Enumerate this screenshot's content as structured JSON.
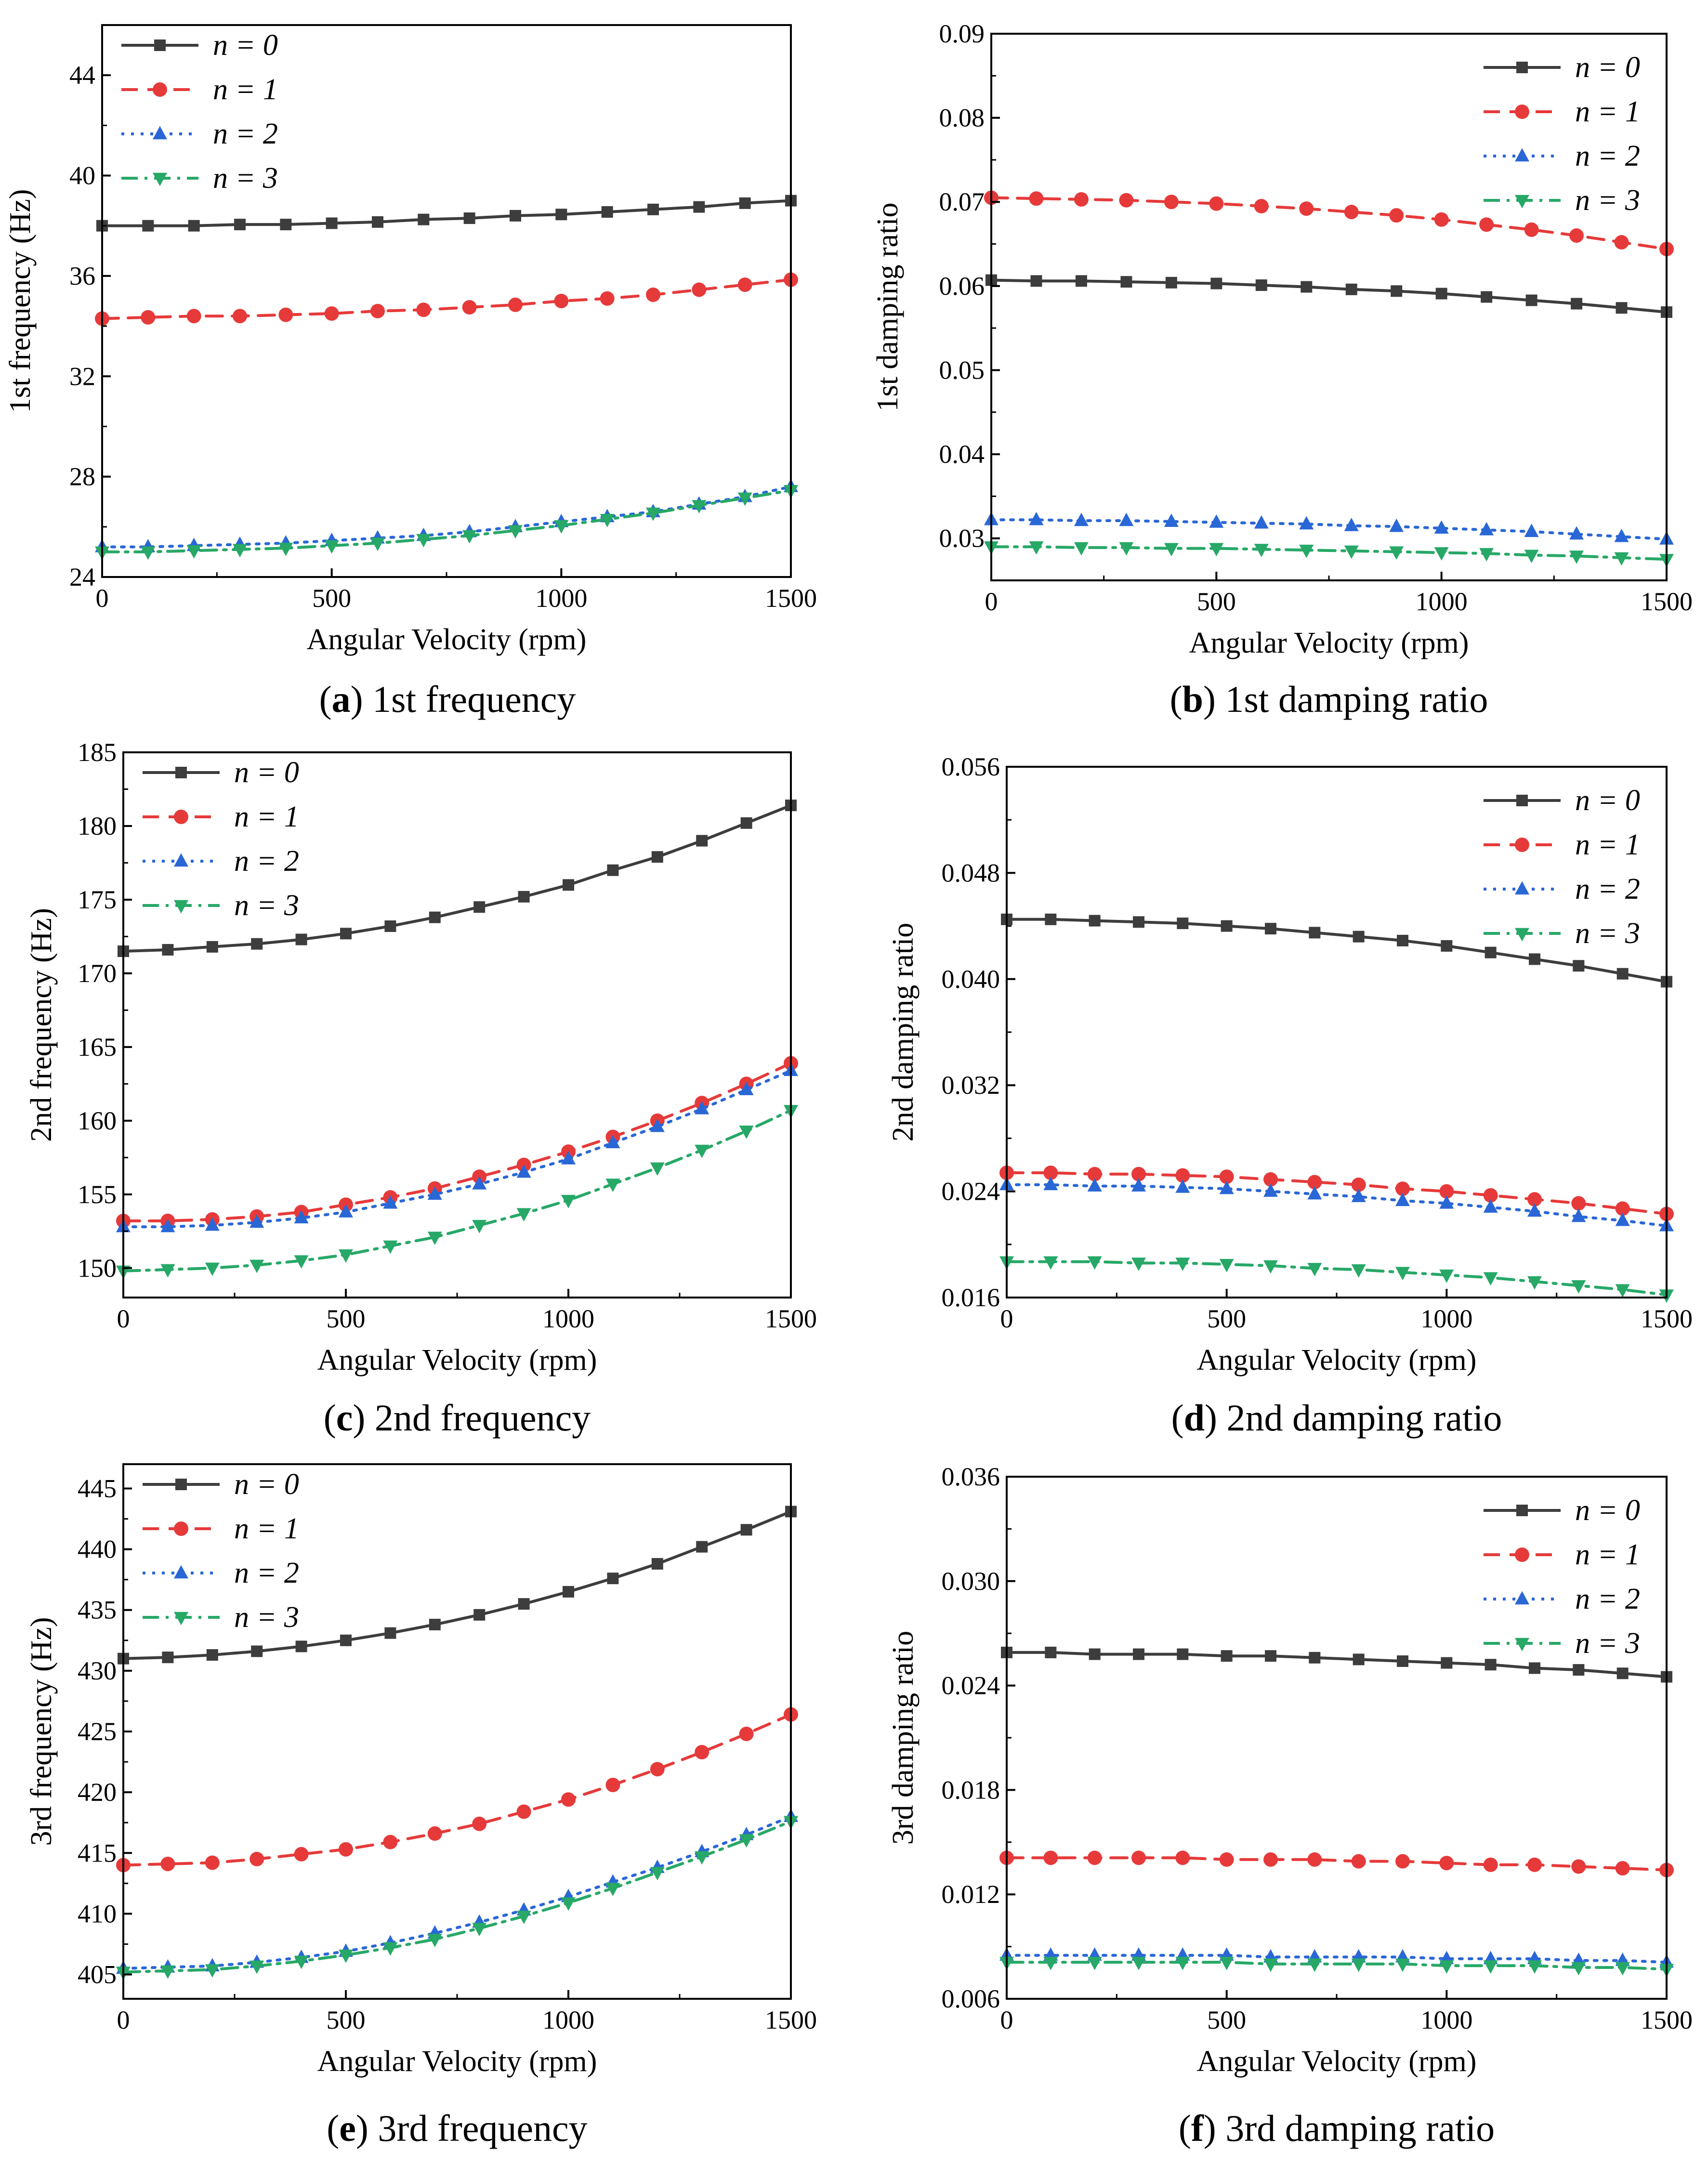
{
  "chart_data": [
    {
      "type": "line",
      "caption_letter": "a",
      "caption_text": "1st frequency",
      "xlabel": "Angular Velocity (rpm)",
      "ylabel": "1st frequency (Hz)",
      "xlim": [
        0,
        1500
      ],
      "ylim": [
        24,
        46
      ],
      "xticks": [
        0,
        500,
        1000,
        1500
      ],
      "yticks": [
        24,
        28,
        32,
        36,
        40,
        44
      ],
      "ytick_labels": [
        "24",
        "28",
        "32",
        "36",
        "40",
        "44"
      ],
      "legend_position": "top-left",
      "x": [
        0,
        100,
        200,
        300,
        400,
        500,
        600,
        700,
        800,
        900,
        1000,
        1100,
        1200,
        1300,
        1400,
        1500
      ],
      "series": [
        {
          "name": "n = 0",
          "values": [
            38.0,
            38.0,
            38.0,
            38.05,
            38.05,
            38.1,
            38.15,
            38.25,
            38.3,
            38.4,
            38.45,
            38.55,
            38.65,
            38.75,
            38.9,
            39.0
          ]
        },
        {
          "name": "n = 1",
          "values": [
            34.3,
            34.35,
            34.4,
            34.4,
            34.45,
            34.5,
            34.6,
            34.65,
            34.75,
            34.85,
            35.0,
            35.1,
            35.25,
            35.45,
            35.65,
            35.85
          ]
        },
        {
          "name": "n = 2",
          "values": [
            25.2,
            25.2,
            25.25,
            25.3,
            25.35,
            25.45,
            25.55,
            25.65,
            25.8,
            26.0,
            26.2,
            26.4,
            26.6,
            26.9,
            27.2,
            27.6
          ]
        },
        {
          "name": "n = 3",
          "values": [
            25.0,
            25.0,
            25.05,
            25.1,
            25.15,
            25.25,
            25.35,
            25.5,
            25.65,
            25.85,
            26.05,
            26.3,
            26.55,
            26.85,
            27.15,
            27.45
          ]
        }
      ]
    },
    {
      "type": "line",
      "caption_letter": "b",
      "caption_text": "1st damping ratio",
      "xlabel": "Angular Velocity (rpm)",
      "ylabel": "1st damping ratio",
      "xlim": [
        0,
        1500
      ],
      "ylim": [
        0.025,
        0.09
      ],
      "xticks": [
        0,
        500,
        1000,
        1500
      ],
      "yticks": [
        0.03,
        0.04,
        0.05,
        0.06,
        0.07,
        0.08,
        0.09
      ],
      "ytick_labels": [
        "0.03",
        "0.04",
        "0.05",
        "0.06",
        "0.07",
        "0.08",
        "0.09"
      ],
      "legend_position": "top-right",
      "x": [
        0,
        100,
        200,
        300,
        400,
        500,
        600,
        700,
        800,
        900,
        1000,
        1100,
        1200,
        1300,
        1400,
        1500
      ],
      "series": [
        {
          "name": "n = 0",
          "values": [
            0.0607,
            0.0606,
            0.0606,
            0.0605,
            0.0604,
            0.0603,
            0.0601,
            0.0599,
            0.0596,
            0.0594,
            0.0591,
            0.0587,
            0.0583,
            0.0579,
            0.0574,
            0.0569
          ]
        },
        {
          "name": "n = 1",
          "values": [
            0.0705,
            0.0704,
            0.0703,
            0.0702,
            0.07,
            0.0698,
            0.0695,
            0.0692,
            0.0688,
            0.0684,
            0.0679,
            0.0673,
            0.0667,
            0.066,
            0.0652,
            0.0644
          ]
        },
        {
          "name": "n = 2",
          "values": [
            0.0322,
            0.0322,
            0.0321,
            0.0321,
            0.032,
            0.0319,
            0.0318,
            0.0317,
            0.0315,
            0.0314,
            0.0312,
            0.031,
            0.0308,
            0.0305,
            0.0302,
            0.0299
          ]
        },
        {
          "name": "n = 3",
          "values": [
            0.029,
            0.029,
            0.0289,
            0.0289,
            0.0288,
            0.0288,
            0.0287,
            0.0286,
            0.0285,
            0.0284,
            0.0283,
            0.0282,
            0.028,
            0.0279,
            0.0277,
            0.0275
          ]
        }
      ]
    },
    {
      "type": "line",
      "caption_letter": "c",
      "caption_text": "2nd frequency",
      "xlabel": "Angular Velocity (rpm)",
      "ylabel": "2nd frequency (Hz)",
      "xlim": [
        0,
        1500
      ],
      "ylim": [
        148,
        185
      ],
      "xticks": [
        0,
        500,
        1000,
        1500
      ],
      "yticks": [
        150,
        155,
        160,
        165,
        170,
        175,
        180,
        185
      ],
      "ytick_labels": [
        "150",
        "155",
        "160",
        "165",
        "170",
        "175",
        "180",
        "185"
      ],
      "legend_position": "top-left",
      "x": [
        0,
        100,
        200,
        300,
        400,
        500,
        600,
        700,
        800,
        900,
        1000,
        1100,
        1200,
        1300,
        1400,
        1500
      ],
      "series": [
        {
          "name": "n = 0",
          "values": [
            171.5,
            171.6,
            171.8,
            172.0,
            172.3,
            172.7,
            173.2,
            173.8,
            174.5,
            175.2,
            176.0,
            177.0,
            177.9,
            179.0,
            180.2,
            181.4
          ]
        },
        {
          "name": "n = 1",
          "values": [
            153.2,
            153.2,
            153.3,
            153.5,
            153.8,
            154.3,
            154.8,
            155.4,
            156.2,
            157.0,
            157.9,
            158.9,
            160.0,
            161.2,
            162.5,
            163.9
          ]
        },
        {
          "name": "n = 2",
          "values": [
            152.8,
            152.8,
            152.9,
            153.1,
            153.4,
            153.8,
            154.4,
            155.0,
            155.7,
            156.5,
            157.4,
            158.5,
            159.6,
            160.8,
            162.1,
            163.4
          ]
        },
        {
          "name": "n = 3",
          "values": [
            149.8,
            149.9,
            150.0,
            150.2,
            150.5,
            150.9,
            151.5,
            152.1,
            152.9,
            153.7,
            154.6,
            155.7,
            156.8,
            158.0,
            159.3,
            160.7
          ]
        }
      ]
    },
    {
      "type": "line",
      "caption_letter": "d",
      "caption_text": "2nd damping ratio",
      "xlabel": "Angular Velocity (rpm)",
      "ylabel": "2nd damping ratio",
      "xlim": [
        0,
        1500
      ],
      "ylim": [
        0.016,
        0.056
      ],
      "xticks": [
        0,
        500,
        1000,
        1500
      ],
      "yticks": [
        0.016,
        0.024,
        0.032,
        0.04,
        0.048,
        0.056
      ],
      "ytick_labels": [
        "0.016",
        "0.024",
        "0.032",
        "0.040",
        "0.048",
        "0.056"
      ],
      "legend_position": "top-right",
      "x": [
        0,
        100,
        200,
        300,
        400,
        500,
        600,
        700,
        800,
        900,
        1000,
        1100,
        1200,
        1300,
        1400,
        1500
      ],
      "series": [
        {
          "name": "n = 0",
          "values": [
            0.0445,
            0.0445,
            0.0444,
            0.0443,
            0.0442,
            0.044,
            0.0438,
            0.0435,
            0.0432,
            0.0429,
            0.0425,
            0.042,
            0.0415,
            0.041,
            0.0404,
            0.0398
          ]
        },
        {
          "name": "n = 1",
          "values": [
            0.0254,
            0.0254,
            0.0253,
            0.0253,
            0.0252,
            0.0251,
            0.0249,
            0.0247,
            0.0245,
            0.0242,
            0.024,
            0.0237,
            0.0234,
            0.0231,
            0.0227,
            0.0223
          ]
        },
        {
          "name": "n = 2",
          "values": [
            0.0245,
            0.0245,
            0.0244,
            0.0244,
            0.0243,
            0.0242,
            0.024,
            0.0238,
            0.0236,
            0.0233,
            0.0231,
            0.0228,
            0.0225,
            0.0221,
            0.0218,
            0.0214
          ]
        },
        {
          "name": "n = 3",
          "values": [
            0.0187,
            0.0187,
            0.0187,
            0.0186,
            0.0186,
            0.0185,
            0.0184,
            0.0182,
            0.0181,
            0.0179,
            0.0177,
            0.0175,
            0.0172,
            0.0169,
            0.0166,
            0.0162
          ]
        }
      ]
    },
    {
      "type": "line",
      "caption_letter": "e",
      "caption_text": "3rd frequency",
      "xlabel": "Angular Velocity (rpm)",
      "ylabel": "3rd frequency (Hz)",
      "xlim": [
        0,
        1500
      ],
      "ylim": [
        403,
        447
      ],
      "xticks": [
        0,
        500,
        1000,
        1500
      ],
      "yticks": [
        405,
        410,
        415,
        420,
        425,
        430,
        435,
        440,
        445
      ],
      "ytick_labels": [
        "405",
        "410",
        "415",
        "420",
        "425",
        "430",
        "435",
        "440",
        "445"
      ],
      "legend_position": "top-left",
      "x": [
        0,
        100,
        200,
        300,
        400,
        500,
        600,
        700,
        800,
        900,
        1000,
        1100,
        1200,
        1300,
        1400,
        1500
      ],
      "series": [
        {
          "name": "n = 0",
          "values": [
            431.0,
            431.1,
            431.3,
            431.6,
            432.0,
            432.5,
            433.1,
            433.8,
            434.6,
            435.5,
            436.5,
            437.6,
            438.8,
            440.2,
            441.6,
            443.1
          ]
        },
        {
          "name": "n = 1",
          "values": [
            414.0,
            414.1,
            414.2,
            414.5,
            414.9,
            415.3,
            415.9,
            416.6,
            417.4,
            418.4,
            419.4,
            420.6,
            421.9,
            423.3,
            424.8,
            426.4
          ]
        },
        {
          "name": "n = 2",
          "values": [
            405.5,
            405.6,
            405.7,
            406.0,
            406.4,
            406.9,
            407.6,
            408.4,
            409.3,
            410.3,
            411.4,
            412.6,
            413.8,
            415.1,
            416.5,
            418.0
          ]
        },
        {
          "name": "n = 3",
          "values": [
            405.2,
            405.3,
            405.4,
            405.7,
            406.1,
            406.6,
            407.2,
            407.9,
            408.8,
            409.8,
            410.9,
            412.1,
            413.4,
            414.7,
            416.1,
            417.6
          ]
        }
      ]
    },
    {
      "type": "line",
      "caption_letter": "f",
      "caption_text": "3rd damping ratio",
      "xlabel": "Angular Velocity (rpm)",
      "ylabel": "3rd damping ratio",
      "xlim": [
        0,
        1500
      ],
      "ylim": [
        0.006,
        0.036
      ],
      "xticks": [
        0,
        500,
        1000,
        1500
      ],
      "yticks": [
        0.006,
        0.012,
        0.018,
        0.024,
        0.03,
        0.036
      ],
      "ytick_labels": [
        "0.006",
        "0.012",
        "0.018",
        "0.024",
        "0.030",
        "0.036"
      ],
      "legend_position": "top-right",
      "x": [
        0,
        100,
        200,
        300,
        400,
        500,
        600,
        700,
        800,
        900,
        1000,
        1100,
        1200,
        1300,
        1400,
        1500
      ],
      "series": [
        {
          "name": "n = 0",
          "values": [
            0.0259,
            0.0259,
            0.0258,
            0.0258,
            0.0258,
            0.0257,
            0.0257,
            0.0256,
            0.0255,
            0.0254,
            0.0253,
            0.0252,
            0.025,
            0.0249,
            0.0247,
            0.0245
          ]
        },
        {
          "name": "n = 1",
          "values": [
            0.0141,
            0.0141,
            0.0141,
            0.0141,
            0.0141,
            0.014,
            0.014,
            0.014,
            0.0139,
            0.0139,
            0.0138,
            0.0137,
            0.0137,
            0.0136,
            0.0135,
            0.0134
          ]
        },
        {
          "name": "n = 2",
          "values": [
            0.0085,
            0.0085,
            0.0085,
            0.0085,
            0.0085,
            0.0085,
            0.0084,
            0.0084,
            0.0084,
            0.0084,
            0.0083,
            0.0083,
            0.0083,
            0.0082,
            0.0082,
            0.0081
          ]
        },
        {
          "name": "n = 3",
          "values": [
            0.0081,
            0.0081,
            0.0081,
            0.0081,
            0.0081,
            0.0081,
            0.008,
            0.008,
            0.008,
            0.008,
            0.0079,
            0.0079,
            0.0079,
            0.0078,
            0.0078,
            0.0077
          ]
        }
      ]
    }
  ],
  "series_styles": [
    {
      "color": "#3d3d3d",
      "marker": "square",
      "dash": "none"
    },
    {
      "color": "#e63a3a",
      "marker": "circle",
      "dash": "dash"
    },
    {
      "color": "#2a67d6",
      "marker": "triangle-up",
      "dash": "dot"
    },
    {
      "color": "#27a867",
      "marker": "triangle-down",
      "dash": "dashdot"
    }
  ]
}
